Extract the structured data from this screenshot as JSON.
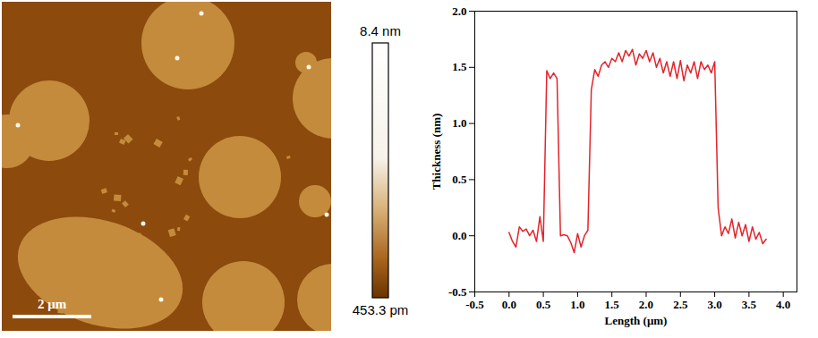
{
  "afm_image": {
    "scale_bar": "2 μm",
    "colorbar": {
      "max_label": "8.4 nm",
      "min_label": "453.3 pm"
    }
  },
  "chart_data": {
    "type": "line",
    "x_label": "Length (μm)",
    "y_label": "Thickness (nm)",
    "color": "#e3242b",
    "x": [
      0.0,
      0.05,
      0.1,
      0.15,
      0.2,
      0.25,
      0.3,
      0.35,
      0.4,
      0.45,
      0.5,
      0.55,
      0.6,
      0.65,
      0.7,
      0.75,
      0.8,
      0.85,
      0.9,
      0.95,
      1.0,
      1.05,
      1.1,
      1.15,
      1.2,
      1.25,
      1.3,
      1.35,
      1.4,
      1.45,
      1.5,
      1.55,
      1.6,
      1.65,
      1.7,
      1.75,
      1.8,
      1.85,
      1.9,
      1.95,
      2.0,
      2.05,
      2.1,
      2.15,
      2.2,
      2.25,
      2.3,
      2.35,
      2.4,
      2.45,
      2.5,
      2.55,
      2.6,
      2.65,
      2.7,
      2.75,
      2.8,
      2.85,
      2.9,
      2.95,
      3.0,
      3.05,
      3.1,
      3.15,
      3.2,
      3.25,
      3.3,
      3.35,
      3.4,
      3.45,
      3.5,
      3.55,
      3.6,
      3.65,
      3.7,
      3.75
    ],
    "values": [
      0.03,
      -0.05,
      -0.1,
      0.08,
      0.04,
      0.06,
      0.0,
      0.05,
      -0.05,
      0.17,
      -0.05,
      1.47,
      1.4,
      1.45,
      1.4,
      0.0,
      0.01,
      0.0,
      -0.06,
      -0.15,
      0.02,
      -0.1,
      0.0,
      0.05,
      1.3,
      1.48,
      1.42,
      1.52,
      1.55,
      1.5,
      1.58,
      1.55,
      1.63,
      1.55,
      1.65,
      1.6,
      1.66,
      1.52,
      1.62,
      1.58,
      1.65,
      1.55,
      1.63,
      1.5,
      1.58,
      1.45,
      1.55,
      1.42,
      1.55,
      1.4,
      1.56,
      1.38,
      1.52,
      1.45,
      1.55,
      1.4,
      1.55,
      1.48,
      1.52,
      1.45,
      1.55,
      0.25,
      0.0,
      0.08,
      0.02,
      0.15,
      -0.02,
      0.12,
      0.0,
      0.1,
      -0.05,
      0.08,
      -0.03,
      0.03,
      -0.07,
      -0.03
    ],
    "xlim": [
      -0.5,
      4.2
    ],
    "xticks": [
      -0.5,
      {
        "value": 0,
        "label": "0.0"
      },
      0.5,
      {
        "value": 1,
        "label": "1.0"
      },
      1.5,
      {
        "value": 2,
        "label": "2.0"
      },
      2.5,
      {
        "value": 3,
        "label": "3.0"
      },
      3.5,
      {
        "value": 4,
        "label": "4.0"
      }
    ],
    "ylim": [
      -0.5,
      2.0
    ],
    "yticks": [
      -0.5,
      {
        "value": 0,
        "label": "0.0"
      },
      0.5,
      {
        "value": 1,
        "label": "1.0"
      },
      1.5,
      {
        "value": 2,
        "label": "2.0"
      }
    ],
    "grid": false
  }
}
